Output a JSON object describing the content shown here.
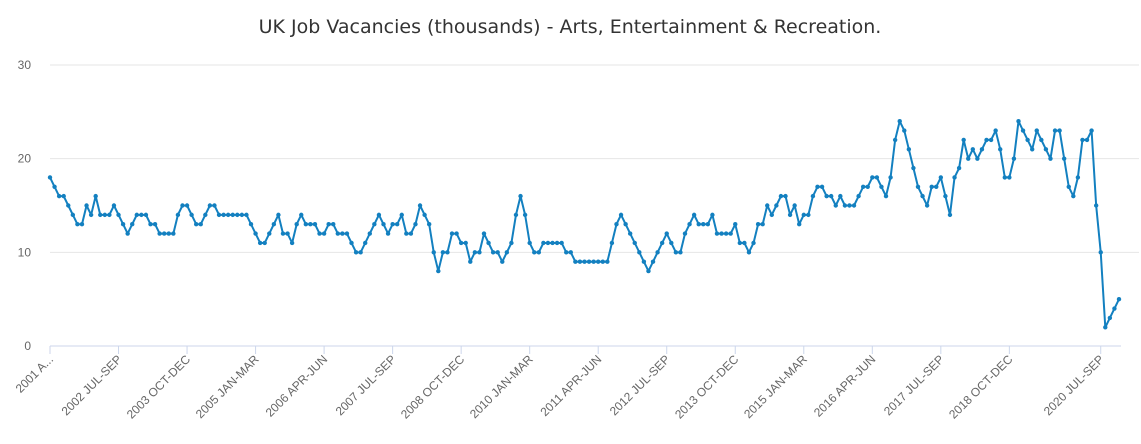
{
  "chart_data": {
    "type": "line",
    "title": "UK Job Vacancies (thousands) - Arts, Entertainment & Recreation.",
    "xlabel": "",
    "ylabel": "",
    "ylim": [
      0,
      30
    ],
    "yticks": [
      0,
      10,
      20,
      30
    ],
    "grid": true,
    "legend": "none",
    "color": "#1380c0",
    "x_tick_labels": [
      "2001 A...",
      "2002 JUL-SEP",
      "2003 OCT-DEC",
      "2005 JAN-MAR",
      "2006 APR-JUN",
      "2007 JUL-SEP",
      "2008 OCT-DEC",
      "2010 JAN-MAR",
      "2011 APR-JUN",
      "2012 JUL-SEP",
      "2013 OCT-DEC",
      "2015 JAN-MAR",
      "2016 APR-JUN",
      "2017 JUL-SEP",
      "2018 OCT-DEC",
      "2020 JUL-SEP"
    ],
    "x_tick_indices": [
      0,
      15,
      30,
      45,
      60,
      75,
      90,
      105,
      120,
      135,
      150,
      165,
      180,
      195,
      210,
      230
    ],
    "series": [
      {
        "values": [
          18,
          17,
          16,
          16,
          15,
          14,
          13,
          13,
          15,
          14,
          16,
          14,
          14,
          14,
          15,
          14,
          13,
          12,
          13,
          14,
          14,
          14,
          13,
          13,
          12,
          12,
          12,
          12,
          14,
          15,
          15,
          14,
          13,
          13,
          14,
          15,
          15,
          14,
          14,
          14,
          14,
          14,
          14,
          14,
          13,
          12,
          11,
          11,
          12,
          13,
          14,
          12,
          12,
          11,
          13,
          14,
          13,
          13,
          13,
          12,
          12,
          13,
          13,
          12,
          12,
          12,
          11,
          10,
          10,
          11,
          12,
          13,
          14,
          13,
          12,
          13,
          13,
          14,
          12,
          12,
          13,
          15,
          14,
          13,
          10,
          8,
          10,
          10,
          12,
          12,
          11,
          11,
          9,
          10,
          10,
          12,
          11,
          10,
          10,
          9,
          10,
          11,
          14,
          16,
          14,
          11,
          10,
          10,
          11,
          11,
          11,
          11,
          11,
          10,
          10,
          9,
          9,
          9,
          9,
          9,
          9,
          9,
          9,
          11,
          13,
          14,
          13,
          12,
          11,
          10,
          9,
          8,
          9,
          10,
          11,
          12,
          11,
          10,
          10,
          12,
          13,
          14,
          13,
          13,
          13,
          14,
          12,
          12,
          12,
          12,
          13,
          11,
          11,
          10,
          11,
          13,
          13,
          15,
          14,
          15,
          16,
          16,
          14,
          15,
          13,
          14,
          14,
          16,
          17,
          17,
          16,
          16,
          15,
          16,
          15,
          15,
          15,
          16,
          17,
          17,
          18,
          18,
          17,
          16,
          18,
          22,
          24,
          23,
          21,
          19,
          17,
          16,
          15,
          17,
          17,
          18,
          16,
          14,
          18,
          19,
          22,
          20,
          21,
          20,
          21,
          22,
          22,
          23,
          21,
          18,
          18,
          20,
          24,
          23,
          22,
          21,
          23,
          22,
          21,
          20,
          23,
          23,
          20,
          17,
          16,
          18,
          22,
          22,
          23,
          15,
          10,
          2,
          3,
          4,
          5
        ]
      }
    ]
  }
}
